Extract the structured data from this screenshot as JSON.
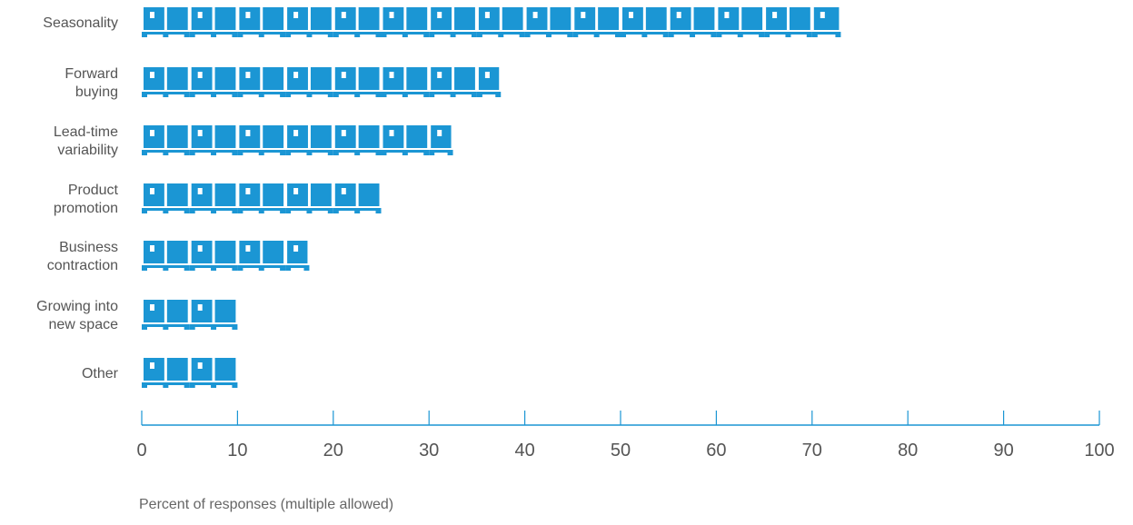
{
  "chart_data": {
    "type": "bar",
    "orientation": "horizontal",
    "mark_style": "pictogram-pallet-boxes",
    "categories": [
      [
        "Seasonality"
      ],
      [
        "Forward",
        "buying"
      ],
      [
        "Lead-time",
        "variability"
      ],
      [
        "Product",
        "promotion"
      ],
      [
        "Business",
        "contraction"
      ],
      [
        "Growing into",
        "new space"
      ],
      [
        "Other"
      ]
    ],
    "values": [
      73,
      37.5,
      32.5,
      25,
      17.5,
      10,
      10
    ],
    "xlabel": "Percent of responses (multiple allowed)",
    "xlim": [
      0,
      100
    ],
    "xticks": [
      0,
      10,
      20,
      30,
      40,
      50,
      60,
      70,
      80,
      90,
      100
    ],
    "unit_value": 5,
    "grid": false,
    "colors": {
      "bar": "#1b96d4",
      "window": "#ffffff",
      "axis": "#1b96d4",
      "text": "#555555"
    }
  }
}
